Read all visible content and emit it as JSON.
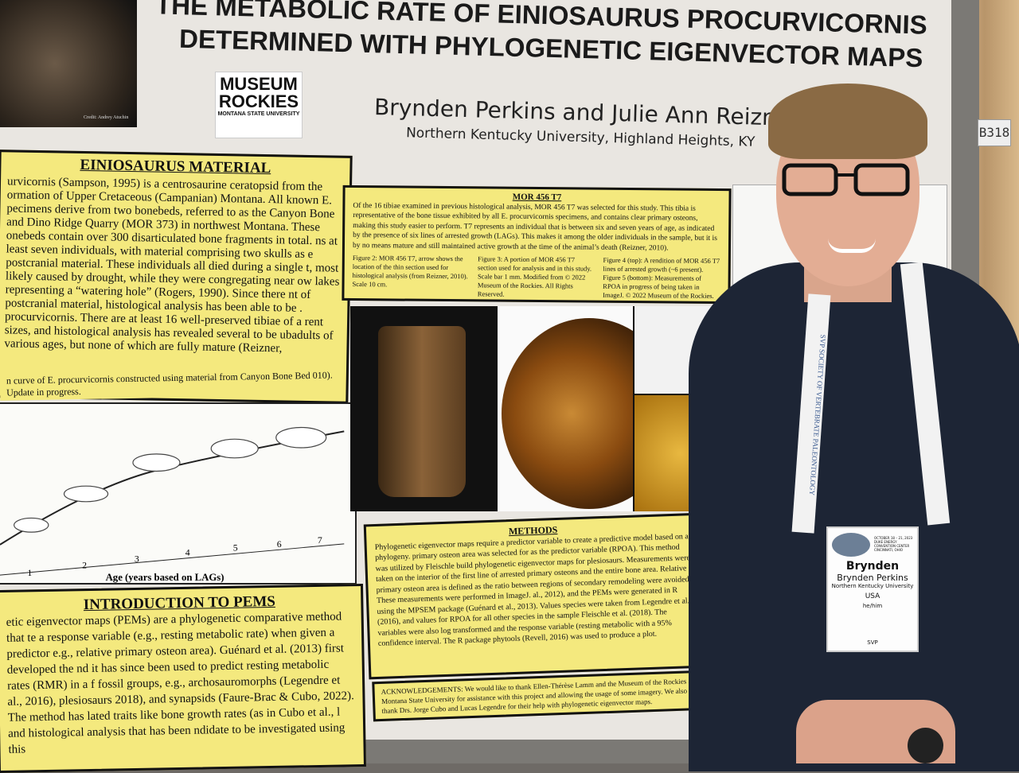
{
  "poster": {
    "title_line1": "THE METABOLIC RATE OF EINIOSAURUS PROCURVICORNIS",
    "title_line2": "DETERMINED WITH PHYLOGENETIC EIGENVECTOR MAPS",
    "authors": "Brynden Perkins and Julie Ann Reizner",
    "affiliation": "Northern Kentucky University, Highland Heights, KY",
    "photo_credit": "Credit: Andrey Atuchin",
    "logo": {
      "line1": "MUSEUM",
      "line2": "ROCKIES",
      "line3": "MONTANA STATE UNIVERSITY"
    },
    "booth": "B318",
    "material": {
      "title": "EINIOSAURUS MATERIAL",
      "text": "urvicornis (Sampson, 1995) is a centrosaurine ceratopsid from the ormation of Upper Cretaceous (Campanian) Montana. All known E. pecimens derive from two bonebeds, referred to as the Canyon Bone and Dino Ridge Quarry (MOR 373) in northwest Montana. These onebeds contain over 300 disarticulated bone fragments in total. ns at least seven individuals, with material comprising two skulls as e postcranial material. These individuals all died during a single t, most likely caused by drought, while they were congregating near ow lakes representing a “watering hole” (Rogers, 1990). Since there nt of postcranial material, histological analysis has been able to be . procurvicornis. There are at least 16 well-preserved tibiae of a rent sizes, and histological analysis has revealed several to be ubadults of various ages, but none of which are fully mature (Reizner,",
      "caption": "n curve of E. procurvicornis constructed using material from Canyon Bone Bed 010). Update in progress."
    },
    "growth_chart": {
      "xlabel": "Age (years based on LAGs)",
      "ticks": [
        "1",
        "2",
        "3",
        "4",
        "5",
        "6",
        "7"
      ]
    },
    "intro": {
      "title": "INTRODUCTION TO PEMS",
      "text": "etic eigenvector maps (PEMs) are a phylogenetic comparative method that te a response variable (e.g., resting metabolic rate) when given a predictor e.g., relative primary osteon area). Guénard et al. (2013) first developed the nd it has since been used to predict resting metabolic rates (RMR) in a f fossil groups, e.g., archosauromorphs (Legendre et al., 2016), plesiosaurs 2018), and synapsids (Faure-Brac & Cubo, 2022). The method has lated traits like bone growth rates (as in Cubo et al., l and histological analysis that has been ndidate to be investigated using this"
    },
    "mor": {
      "title": "MOR 456 T7",
      "text": "Of the 16 tibiae examined in previous histological analysis, MOR 456 T7 was selected for this study. This tibia is representative of the bone tissue exhibited by all E. procurvicornis specimens, and contains clear primary osteons, making this study easier to perform. T7 represents an individual that is between six and seven years of age, as indicated by the presence of six lines of arrested growth (LAGs). This makes it among the older individuals in the sample, but it is by no means mature and still maintained active growth at the time of the animal’s death (Reizner, 2010).",
      "fig2": "Figure 2: MOR 456 T7, arrow shows the location of the thin section used for histological analysis (from Reizner, 2010). Scale 10 cm.",
      "fig3": "Figure 3: A portion of MOR 456 T7 section used for analysis and in this study. Scale bar 1 mm. Modified from © 2022 Museum of the Rockies. All Rights Reserved.",
      "fig45": "Figure 4 (top): A rendition of MOR 456 T7 lines of arrested growth (~6 present). Figure 5 (bottom): Measurements of RPOA in progress of being taken in ImageJ. © 2022 Museum of the Rockies. All Rights Reserved."
    },
    "methods": {
      "title": "METHODS",
      "text": "Phylogenetic eigenvector maps require a predictor variable to create a predictive model based on a phylogeny. primary osteon area was selected for as the predictor variable (RPOA). This method was utilized by Fleischle build phylogenetic eigenvector maps for plesiosaurs. Measurements were taken on the interior of the first line of arrested primary osteons and the entire bone area. Relative primary osteon area is defined as the ratio between regions of secondary remodeling were avoided. These measurements were performed in ImageJ. al., 2012), and the PEMs were generated in R using the MPSEM package (Guénard et al., 2013). Values species were taken from Legendre et al. (2016), and values for RPOA for all other species in the sample Fleischle et al. (2018). The variables were also log transformed and the response variable (resting metabolic with a 95% confidence interval. The R package phytools (Revell, 2016) was used to produce a plot."
    },
    "acknowledgements": "ACKNOWLEDGEMENTS: We would like to thank Ellen-Thérèse Lamm and the Museum of the Rockies at Montana State University for assistance with this project and allowing the usage of some imagery. We also thank Drs. Jorge Cubo and Lucas Legendre for their help with phylogenetic eigenvector maps."
  },
  "badge": {
    "first_name": "Brynden",
    "full_name": "Brynden Perkins",
    "institution": "Northern Kentucky University",
    "country": "USA",
    "pronouns": "he/him",
    "event": "OCTOBER 18 – 21, 2023 DUKE ENERGY CONVENTION CENTER CINCINNATI, OHIO",
    "org": "SVP"
  },
  "lanyard_text": "SVP SOCIETY OF VERTEBRATE PALEONTOLOGY",
  "colors": {
    "panel": "#f4e97e",
    "shirt": "#1d2535",
    "board": "#7b7975"
  }
}
